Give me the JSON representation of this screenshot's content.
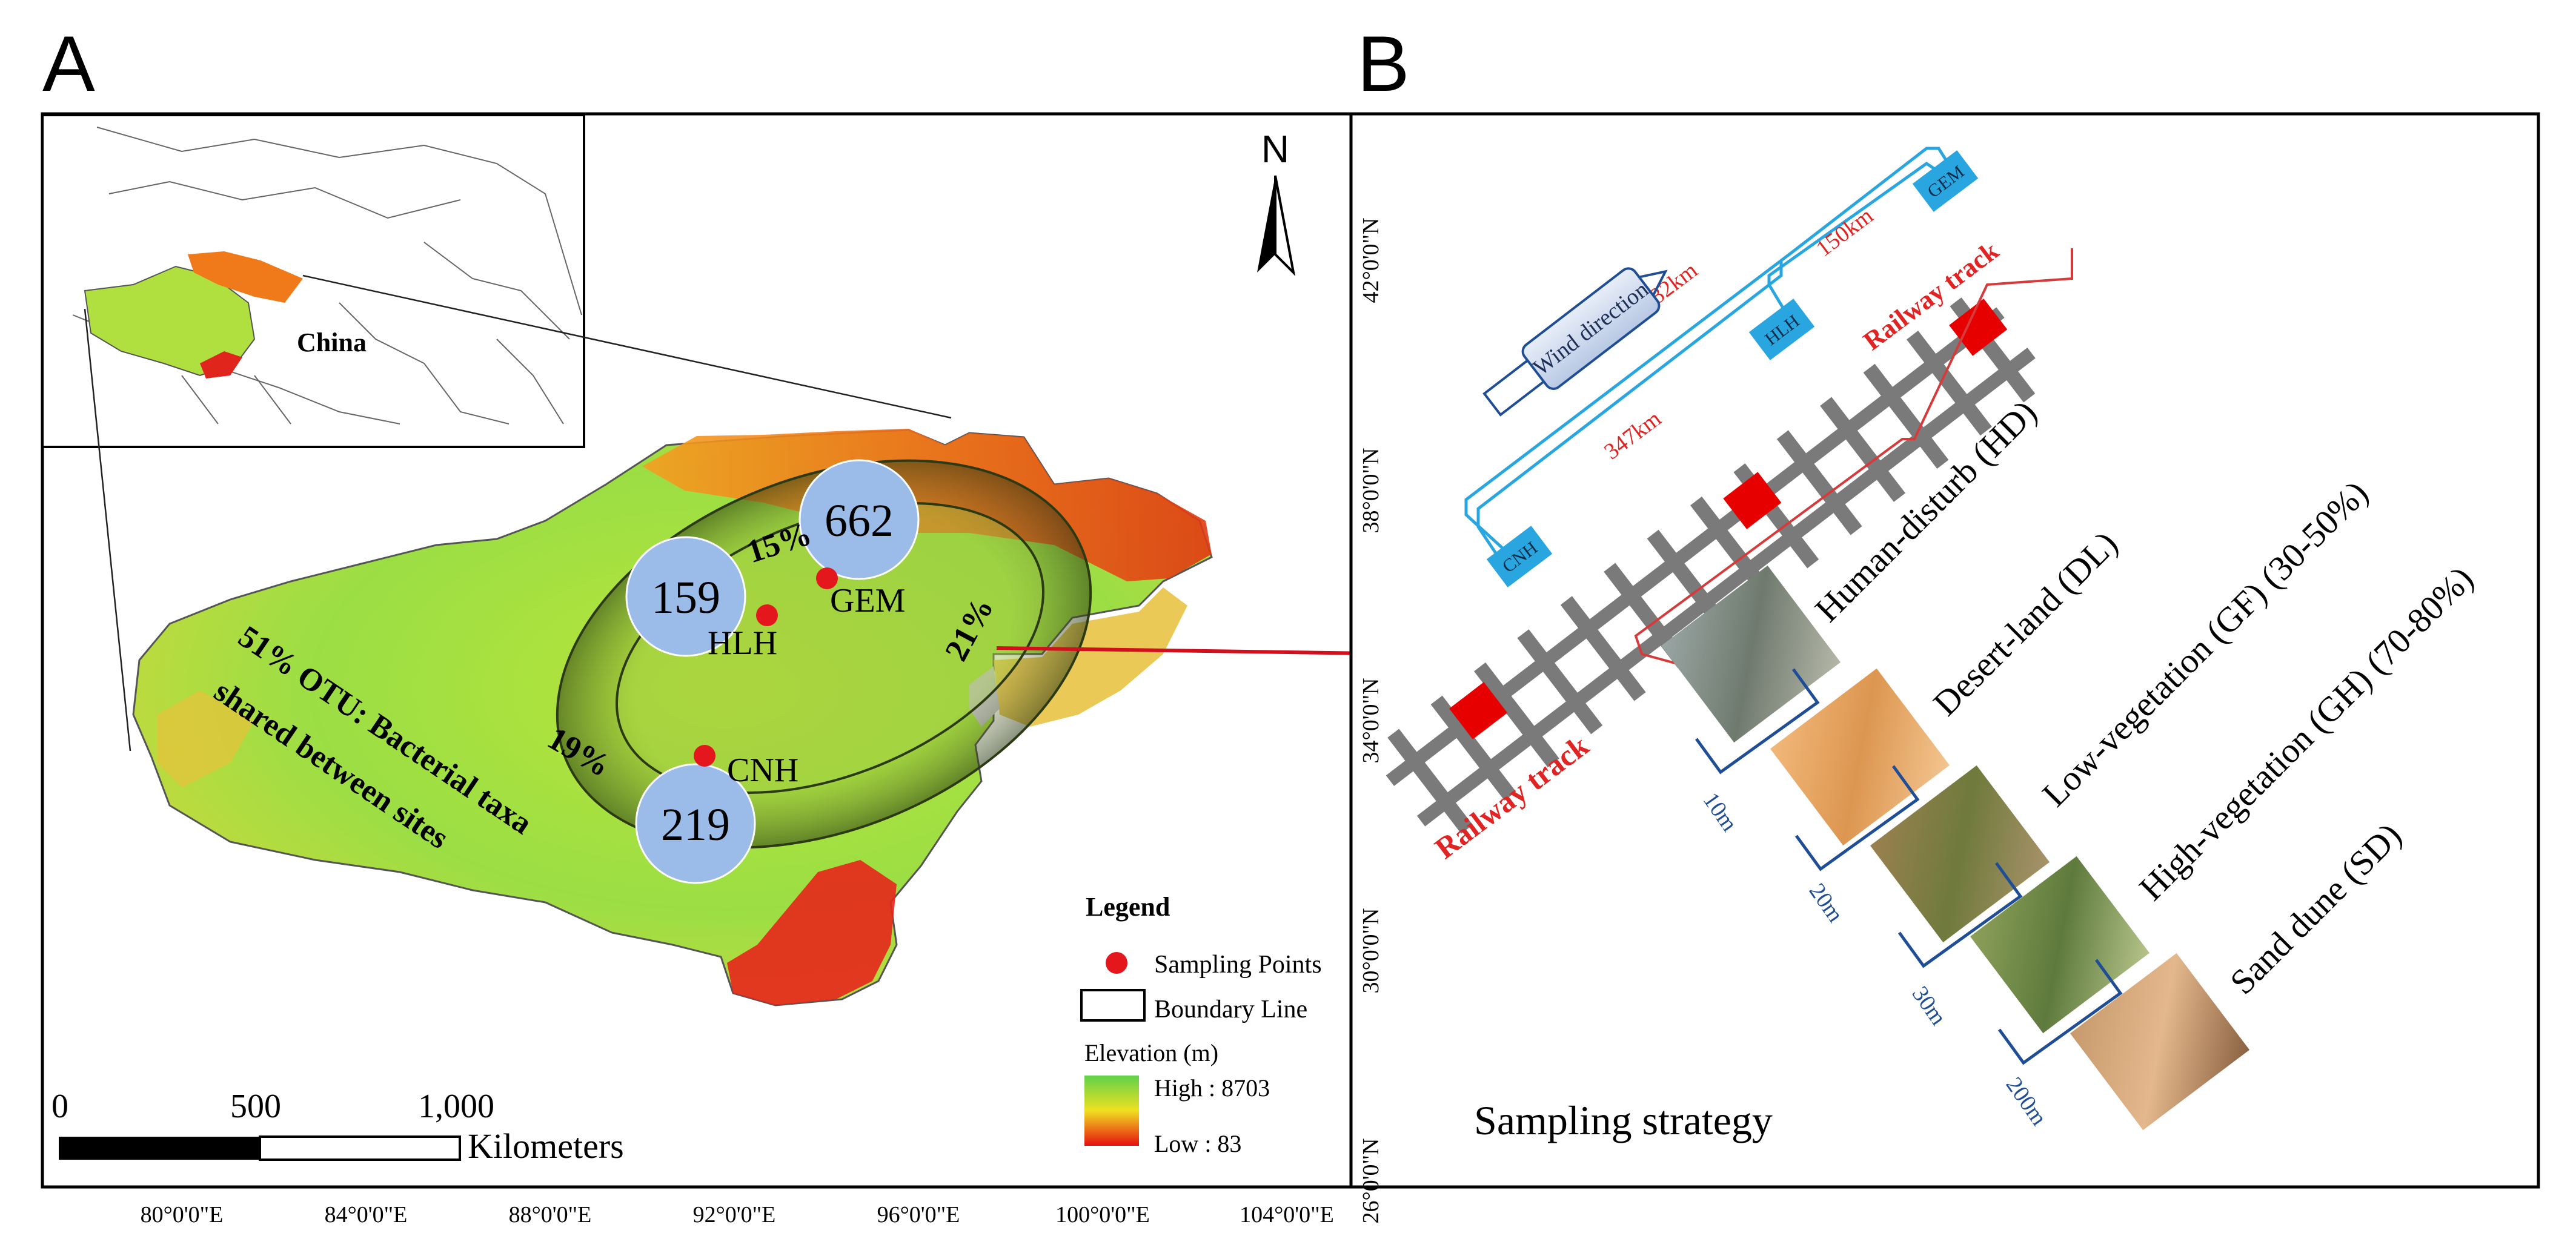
{
  "panel_a": {
    "letter": "A",
    "inset_label": "China",
    "north_label": "N",
    "venn": {
      "circles": [
        "159",
        "662",
        "219"
      ],
      "pct_top": "15%",
      "pct_right": "21%",
      "pct_left": "19%",
      "shared_line1": "51%  OTU:  Bacterial  taxa",
      "shared_line2": "shared between sites"
    },
    "sites": [
      "HLH",
      "GEM",
      "CNH"
    ],
    "legend": {
      "title": "Legend",
      "sampling": "Sampling Points",
      "boundary": "Boundary Line",
      "elevation_title": "Elevation (m)",
      "high": "High : 8703",
      "low": "Low : 83",
      "color_high": "#5fd14a",
      "color_low": "#e60f0f"
    },
    "scale": {
      "ticks": [
        "0",
        "500",
        "1,000"
      ],
      "unit": "Kilometers"
    },
    "lon_ticks": [
      "80°0'0\"E",
      "84°0'0\"E",
      "88°0'0\"E",
      "92°0'0\"E",
      "96°0'0\"E",
      "100°0'0\"E",
      "104°0'0\"E"
    ]
  },
  "panel_b": {
    "letter": "B",
    "lat_ticks": [
      "42°0'0\"N",
      "38°0'0\"N",
      "34°0'0\"N",
      "30°0'0\"N",
      "26°0'0\"N"
    ],
    "wind": "Wind direction",
    "stations": [
      "CNH",
      "HLH",
      "GEM"
    ],
    "distances": [
      "482km",
      "150km",
      "347km"
    ],
    "railway": [
      "Railway track",
      "Railway track"
    ],
    "treatments": [
      "Human-disturb (HD)",
      "Desert-land (DL)",
      "Low-vegetation (GF) (30-50%)",
      "High-vegetation (GH) (70-80%)",
      "Sand dune (SD)"
    ],
    "spacings": [
      "10m",
      "20m",
      "30m",
      "200m"
    ],
    "caption": "Sampling strategy",
    "colors": {
      "station": "#29a6e0",
      "plot": "#e60000",
      "track": "#7a7a7a",
      "bracket_blue": "#1f4e96",
      "distance_red": "#e02424"
    }
  }
}
